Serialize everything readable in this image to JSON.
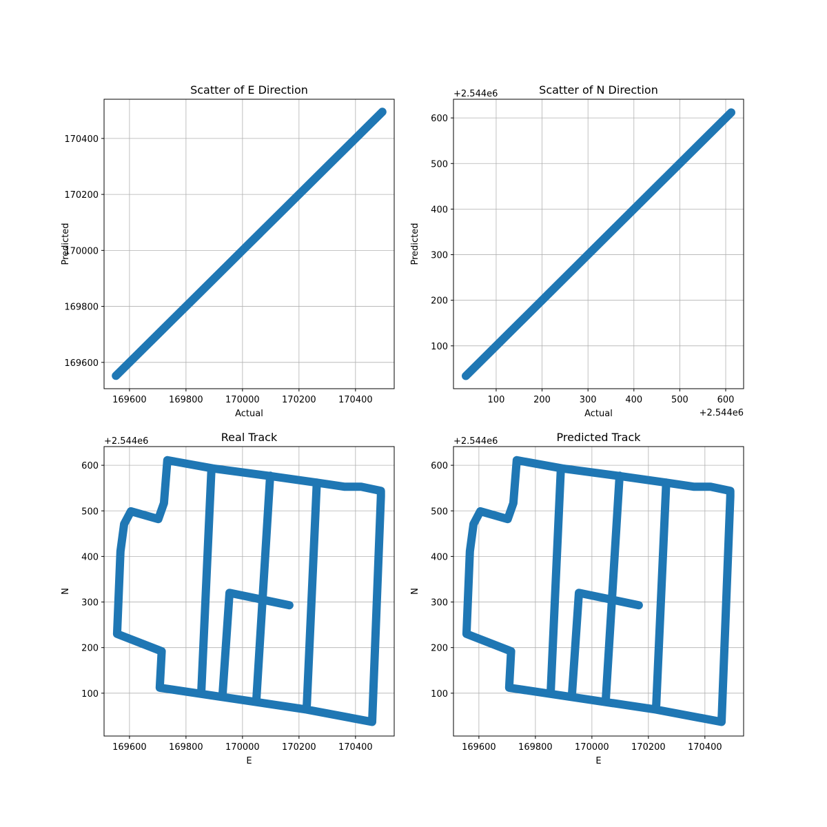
{
  "chart_data": [
    {
      "type": "line",
      "title": "Scatter of E Direction",
      "x_label": "Actual",
      "y_label": "Predicted",
      "color": "#1f77b4",
      "x": [
        169552,
        169700,
        169850,
        170000,
        170150,
        170300,
        170495
      ],
      "y": [
        169552,
        169700,
        169850,
        170000,
        170150,
        170300,
        170495
      ],
      "xlim": [
        169510,
        170537
      ],
      "ylim": [
        169506,
        170540
      ],
      "xticks": [
        169600,
        169800,
        170000,
        170200,
        170400
      ],
      "yticks": [
        169600,
        169800,
        170000,
        170200,
        170400
      ],
      "grid": true
    },
    {
      "type": "line",
      "title": "Scatter of N Direction",
      "x_label": "Actual",
      "y_label": "Predicted",
      "color": "#1f77b4",
      "x_offset_label": "+2.544e6",
      "y_offset_label": "+2.544e6",
      "x": [
        34,
        150,
        300,
        450,
        612
      ],
      "y": [
        34,
        150,
        300,
        450,
        612
      ],
      "xlim": [
        7,
        639
      ],
      "ylim": [
        6,
        641
      ],
      "xticks": [
        100,
        200,
        300,
        400,
        500,
        600
      ],
      "yticks": [
        100,
        200,
        300,
        400,
        500,
        600
      ],
      "grid": true
    },
    {
      "type": "line",
      "title": "Real Track",
      "x_label": "E",
      "y_label": "N",
      "color": "#1f77b4",
      "y_offset_label": "+2.544e6",
      "x": [
        169734,
        169895,
        170090,
        170263,
        170360,
        170420,
        170490,
        170490,
        170459,
        170227,
        169707,
        169714,
        169556,
        169568,
        169581,
        169605,
        169702,
        169722,
        169734,
        null,
        169890,
        169854,
        null,
        170098,
        170049,
        null,
        170263,
        170227,
        null,
        169929,
        169954,
        170166
      ],
      "y": [
        611,
        593,
        577,
        562,
        553,
        553,
        544,
        532,
        37,
        64,
        112,
        192,
        230,
        411,
        471,
        499,
        482,
        517,
        611,
        null,
        592,
        100,
        null,
        577,
        86,
        null,
        562,
        64,
        null,
        94,
        320,
        293
      ],
      "xlim": [
        169510,
        170537
      ],
      "ylim": [
        6,
        641
      ],
      "xticks": [
        169600,
        169800,
        170000,
        170200,
        170400
      ],
      "yticks": [
        100,
        200,
        300,
        400,
        500,
        600
      ],
      "grid": true
    },
    {
      "type": "line",
      "title": "Predicted Track",
      "x_label": "E",
      "y_label": "N",
      "color": "#1f77b4",
      "y_offset_label": "+2.544e6",
      "x": [
        169734,
        169895,
        170090,
        170263,
        170360,
        170420,
        170490,
        170490,
        170459,
        170227,
        169707,
        169714,
        169556,
        169568,
        169581,
        169605,
        169702,
        169722,
        169734,
        null,
        169890,
        169854,
        null,
        170098,
        170049,
        null,
        170263,
        170227,
        null,
        169929,
        169954,
        170166
      ],
      "y": [
        611,
        593,
        577,
        562,
        553,
        553,
        544,
        532,
        37,
        64,
        112,
        192,
        230,
        411,
        471,
        499,
        482,
        517,
        611,
        null,
        592,
        100,
        null,
        577,
        86,
        null,
        562,
        64,
        null,
        94,
        320,
        293
      ],
      "xlim": [
        169510,
        170537
      ],
      "ylim": [
        6,
        641
      ],
      "xticks": [
        169600,
        169800,
        170000,
        170200,
        170400
      ],
      "yticks": [
        100,
        200,
        300,
        400,
        500,
        600
      ],
      "grid": true
    }
  ]
}
